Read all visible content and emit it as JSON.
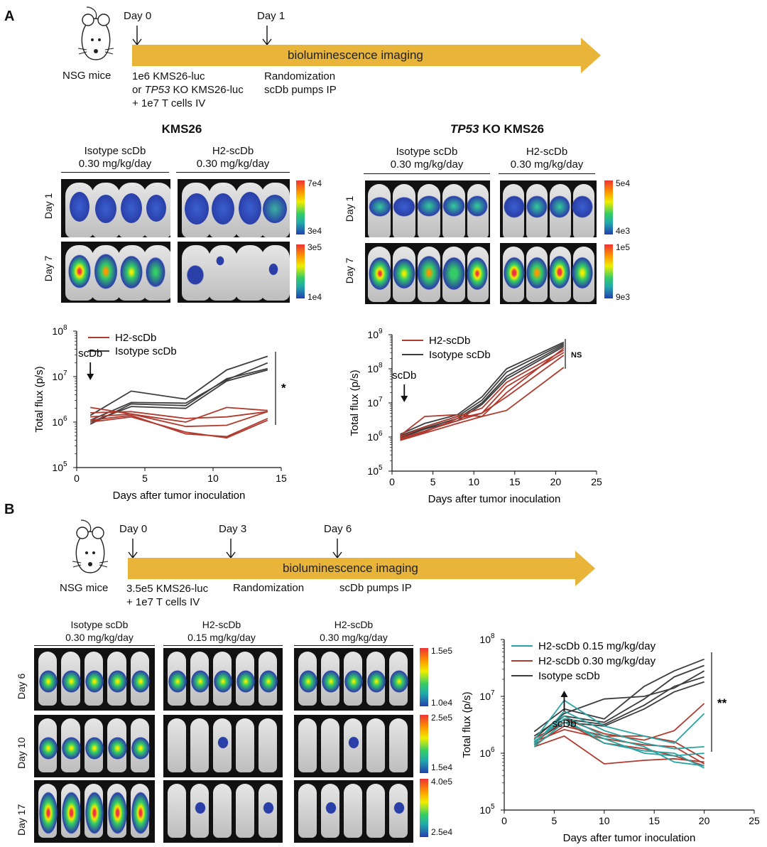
{
  "panelA": {
    "letter": "A",
    "mouse_label": "NSG mice",
    "timeline": {
      "day0": "Day 0",
      "day1": "Day 1",
      "bar_text": "bioluminescence imaging",
      "note1_l1": "1e6 KMS26-luc",
      "note1_l2_pre": "or ",
      "note1_l2_italic": "TP53",
      "note1_l2_post": " KO KMS26-luc",
      "note1_l3": "+ 1e7 T cells IV",
      "note2_l1": "Randomization",
      "note2_l2": "scDb pumps IP"
    },
    "left": {
      "title": "KMS26",
      "group1_l1": "Isotype scDb",
      "group1_l2": "0.30 mg/kg/day",
      "group2_l1": "H2-scDb",
      "group2_l2": "0.30 mg/kg/day",
      "row1": "Day 1",
      "row2": "Day 7",
      "cbar1_top": "7e4",
      "cbar1_bot": "3e4",
      "cbar2_top": "3e5",
      "cbar2_bot": "1e4"
    },
    "right": {
      "title_italic": "TP53",
      "title_rest": " KO KMS26",
      "group1_l1": "Isotype scDb",
      "group1_l2": "0.30 mg/kg/day",
      "group2_l1": "H2-scDb",
      "group2_l2": "0.30 mg/kg/day",
      "row1": "Day 1",
      "row2": "Day 7",
      "cbar1_top": "5e4",
      "cbar1_bot": "4e3",
      "cbar2_top": "1e5",
      "cbar2_bot": "9e3"
    }
  },
  "panelB": {
    "letter": "B",
    "mouse_label": "NSG mice",
    "timeline": {
      "day0": "Day 0",
      "day3": "Day 3",
      "day6": "Day 6",
      "bar_text": "bioluminescence imaging",
      "note1_l1": "3.5e5 KMS26-luc",
      "note1_l2": "+ 1e7 T cells IV",
      "note2": "Randomization",
      "note3": "scDb pumps IP"
    },
    "group1_l1": "Isotype scDb",
    "group1_l2": "0.30 mg/kg/day",
    "group2_l1": "H2-scDb",
    "group2_l2": "0.15 mg/kg/day",
    "group3_l1": "H2-scDb",
    "group3_l2": "0.30 mg/kg/day",
    "row1": "Day 6",
    "row2": "Day 10",
    "row3": "Day 17",
    "cbar1_top": "1.5e5",
    "cbar1_bot": "1.0e4",
    "cbar2_top": "2.5e5",
    "cbar2_bot": "1.5e4",
    "cbar3_top": "4.0e5",
    "cbar3_bot": "2.5e4"
  },
  "colors": {
    "h2": "#b03a2e",
    "isotype": "#3d3d3d",
    "h2_low": "#2aa3a3",
    "timeline_bar": "#e8b43a"
  },
  "chart_data": [
    {
      "type": "line",
      "xlabel": "Days after tumor inoculation",
      "ylabel": "Total flux (p/s)",
      "xlim": [
        0,
        15
      ],
      "xticks": [
        0,
        5,
        10,
        15
      ],
      "ylim_log10": [
        5,
        8
      ],
      "yticks": [
        {
          "base": "10",
          "exp": "5"
        },
        {
          "base": "10",
          "exp": "6"
        },
        {
          "base": "10",
          "exp": "7"
        },
        {
          "base": "10",
          "exp": "8"
        }
      ],
      "annotation": "scDb",
      "annotation_x": 1,
      "significance": "*",
      "legend": [
        {
          "label": "H2-scDb",
          "color": "#b03a2e"
        },
        {
          "label": "Isotype scDb",
          "color": "#3d3d3d"
        }
      ],
      "series": [
        {
          "group": "Isotype scDb",
          "color": "#3d3d3d",
          "x": [
            1,
            4,
            8,
            11,
            14
          ],
          "y": [
            1400000,
            4800000,
            3200000,
            14000000,
            28000000
          ]
        },
        {
          "group": "Isotype scDb",
          "color": "#3d3d3d",
          "x": [
            1,
            4,
            8,
            11,
            14
          ],
          "y": [
            1100000,
            2700000,
            2600000,
            8500000,
            20000000
          ]
        },
        {
          "group": "Isotype scDb",
          "color": "#3d3d3d",
          "x": [
            1,
            4,
            8,
            11,
            14
          ],
          "y": [
            900000,
            2500000,
            2300000,
            9000000,
            15000000
          ]
        },
        {
          "group": "Isotype scDb",
          "color": "#3d3d3d",
          "x": [
            1,
            4,
            8,
            11,
            14
          ],
          "y": [
            1000000,
            2200000,
            2000000,
            8000000,
            14000000
          ]
        },
        {
          "group": "H2-scDb",
          "color": "#b03a2e",
          "x": [
            1,
            4,
            8,
            11,
            14
          ],
          "y": [
            2100000,
            1500000,
            1000000,
            2100000,
            1800000
          ]
        },
        {
          "group": "H2-scDb",
          "color": "#b03a2e",
          "x": [
            1,
            4,
            8,
            11,
            14
          ],
          "y": [
            1600000,
            1700000,
            1200000,
            1300000,
            1700000
          ]
        },
        {
          "group": "H2-scDb",
          "color": "#b03a2e",
          "x": [
            1,
            4,
            8,
            11,
            14
          ],
          "y": [
            1300000,
            1500000,
            800000,
            850000,
            1700000
          ]
        },
        {
          "group": "H2-scDb",
          "color": "#b03a2e",
          "x": [
            1,
            4,
            8,
            11,
            14
          ],
          "y": [
            1100000,
            1400000,
            550000,
            480000,
            1200000
          ]
        },
        {
          "group": "H2-scDb",
          "color": "#b03a2e",
          "x": [
            1,
            4,
            8,
            11,
            14
          ],
          "y": [
            1000000,
            1300000,
            600000,
            450000,
            1100000
          ]
        }
      ]
    },
    {
      "type": "line",
      "xlabel": "Days after tumor inoculation",
      "ylabel": "Total flux (p/s)",
      "xlim": [
        0,
        25
      ],
      "xticks": [
        0,
        5,
        10,
        15,
        20,
        25
      ],
      "ylim_log10": [
        5,
        9
      ],
      "yticks": [
        {
          "base": "10",
          "exp": "5"
        },
        {
          "base": "10",
          "exp": "6"
        },
        {
          "base": "10",
          "exp": "7"
        },
        {
          "base": "10",
          "exp": "8"
        },
        {
          "base": "10",
          "exp": "9"
        }
      ],
      "annotation": "scDb",
      "annotation_x": 1.5,
      "significance": "NS",
      "legend": [
        {
          "label": "H2-scDb",
          "color": "#b03a2e"
        },
        {
          "label": "Isotype scDb",
          "color": "#3d3d3d"
        }
      ],
      "series": [
        {
          "group": "Isotype scDb",
          "color": "#3d3d3d",
          "x": [
            1,
            4,
            8,
            11,
            14,
            21
          ],
          "y": [
            1200000,
            2500000,
            4500000,
            15000000,
            100000000,
            600000000
          ]
        },
        {
          "group": "Isotype scDb",
          "color": "#3d3d3d",
          "x": [
            1,
            4,
            8,
            11,
            14,
            21
          ],
          "y": [
            1100000,
            2000000,
            4000000,
            12000000,
            80000000,
            550000000
          ]
        },
        {
          "group": "Isotype scDb",
          "color": "#3d3d3d",
          "x": [
            1,
            4,
            8,
            11,
            14,
            21
          ],
          "y": [
            1000000,
            1800000,
            3500000,
            10000000,
            60000000,
            500000000
          ]
        },
        {
          "group": "Isotype scDb",
          "color": "#3d3d3d",
          "x": [
            1,
            4,
            8,
            11,
            14,
            21
          ],
          "y": [
            950000,
            1700000,
            3000000,
            9000000,
            50000000,
            450000000
          ]
        },
        {
          "group": "H2-scDb",
          "color": "#b03a2e",
          "x": [
            1,
            4,
            8,
            11,
            14,
            21
          ],
          "y": [
            1100000,
            4000000,
            4500000,
            4000000,
            20000000,
            400000000
          ]
        },
        {
          "group": "H2-scDb",
          "color": "#b03a2e",
          "x": [
            1,
            4,
            8,
            11,
            14,
            21
          ],
          "y": [
            1000000,
            2000000,
            4000000,
            7000000,
            40000000,
            350000000
          ]
        },
        {
          "group": "H2-scDb",
          "color": "#b03a2e",
          "x": [
            1,
            4,
            8,
            11,
            14,
            21
          ],
          "y": [
            900000,
            1500000,
            3000000,
            5000000,
            30000000,
            300000000
          ]
        },
        {
          "group": "H2-scDb",
          "color": "#b03a2e",
          "x": [
            1,
            4,
            8,
            11,
            14,
            21
          ],
          "y": [
            850000,
            1400000,
            3500000,
            5000000,
            15000000,
            250000000
          ]
        },
        {
          "group": "H2-scDb",
          "color": "#b03a2e",
          "x": [
            1,
            4,
            8,
            11,
            14,
            21
          ],
          "y": [
            800000,
            1300000,
            2500000,
            4000000,
            6000000,
            110000000
          ]
        }
      ]
    },
    {
      "type": "line",
      "xlabel": "Days after tumor inoculation",
      "ylabel": "Total flux (p/s)",
      "xlim": [
        0,
        25
      ],
      "xticks": [
        0,
        5,
        10,
        15,
        20,
        25
      ],
      "ylim_log10": [
        5,
        8
      ],
      "yticks": [
        {
          "base": "10",
          "exp": "5"
        },
        {
          "base": "10",
          "exp": "6"
        },
        {
          "base": "10",
          "exp": "7"
        },
        {
          "base": "10",
          "exp": "8"
        }
      ],
      "annotation": "scDb",
      "annotation_x": 6,
      "significance": "**",
      "legend": [
        {
          "label": "H2-scDb 0.15 mg/kg/day",
          "color": "#2aa3a3"
        },
        {
          "label": "H2-scDb 0.30 mg/kg/day",
          "color": "#b03a2e"
        },
        {
          "label": "Isotype scDb",
          "color": "#3d3d3d"
        }
      ],
      "series": [
        {
          "group": "Isotype scDb",
          "color": "#3d3d3d",
          "x": [
            3,
            6,
            10,
            14,
            17,
            20
          ],
          "y": [
            2400000,
            6000000,
            4000000,
            15000000,
            28000000,
            45000000
          ]
        },
        {
          "group": "Isotype scDb",
          "color": "#3d3d3d",
          "x": [
            3,
            6,
            10,
            14,
            17,
            20
          ],
          "y": [
            2000000,
            4500000,
            3500000,
            9000000,
            22000000,
            35000000
          ]
        },
        {
          "group": "Isotype scDb",
          "color": "#3d3d3d",
          "x": [
            3,
            6,
            10,
            14,
            17,
            20
          ],
          "y": [
            1800000,
            5000000,
            9000000,
            10000000,
            14000000,
            28000000
          ]
        },
        {
          "group": "Isotype scDb",
          "color": "#3d3d3d",
          "x": [
            3,
            6,
            10,
            14,
            17,
            20
          ],
          "y": [
            1600000,
            3500000,
            3000000,
            6000000,
            12000000,
            18000000
          ]
        },
        {
          "group": "Isotype scDb",
          "color": "#3d3d3d",
          "x": [
            3,
            6,
            10,
            14,
            17,
            20
          ],
          "y": [
            1500000,
            4000000,
            3200000,
            7000000,
            15000000,
            22000000
          ]
        },
        {
          "group": "H2-scDb 0.30 mg/kg/day",
          "color": "#b03a2e",
          "x": [
            3,
            6,
            10,
            14,
            17,
            20
          ],
          "y": [
            1500000,
            4000000,
            2200000,
            1700000,
            2500000,
            7500000
          ]
        },
        {
          "group": "H2-scDb 0.30 mg/kg/day",
          "color": "#b03a2e",
          "x": [
            3,
            6,
            10,
            14,
            17,
            20
          ],
          "y": [
            1400000,
            3000000,
            2000000,
            2000000,
            1600000,
            800000
          ]
        },
        {
          "group": "H2-scDb 0.30 mg/kg/day",
          "color": "#b03a2e",
          "x": [
            3,
            6,
            10,
            14,
            17,
            20
          ],
          "y": [
            1300000,
            2000000,
            650000,
            750000,
            800000,
            700000
          ]
        },
        {
          "group": "H2-scDb 0.30 mg/kg/day",
          "color": "#b03a2e",
          "x": [
            3,
            6,
            10,
            14,
            17,
            20
          ],
          "y": [
            1800000,
            3500000,
            1500000,
            1200000,
            900000,
            600000
          ]
        },
        {
          "group": "H2-scDb 0.30 mg/kg/day",
          "color": "#b03a2e",
          "x": [
            3,
            6,
            10,
            14,
            17,
            20
          ],
          "y": [
            1600000,
            2600000,
            1800000,
            1400000,
            1300000,
            650000
          ]
        },
        {
          "group": "H2-scDb 0.15 mg/kg/day",
          "color": "#2aa3a3",
          "x": [
            3,
            6,
            10,
            14,
            17,
            20
          ],
          "y": [
            1700000,
            8500000,
            3000000,
            2000000,
            1500000,
            5000000
          ]
        },
        {
          "group": "H2-scDb 0.15 mg/kg/day",
          "color": "#2aa3a3",
          "x": [
            3,
            6,
            10,
            14,
            17,
            20
          ],
          "y": [
            1400000,
            5500000,
            2500000,
            1500000,
            1200000,
            1300000
          ]
        },
        {
          "group": "H2-scDb 0.15 mg/kg/day",
          "color": "#2aa3a3",
          "x": [
            3,
            6,
            10,
            14,
            17,
            20
          ],
          "y": [
            1600000,
            4000000,
            1500000,
            1100000,
            1000000,
            550000
          ]
        },
        {
          "group": "H2-scDb 0.15 mg/kg/day",
          "color": "#2aa3a3",
          "x": [
            3,
            6,
            10,
            14,
            17,
            20
          ],
          "y": [
            1300000,
            3500000,
            1800000,
            1000000,
            900000,
            1000000
          ]
        },
        {
          "group": "H2-scDb 0.15 mg/kg/day",
          "color": "#2aa3a3",
          "x": [
            3,
            6,
            10,
            14,
            17,
            20
          ],
          "y": [
            1500000,
            4500000,
            2000000,
            1300000,
            700000,
            600000
          ]
        }
      ]
    }
  ]
}
